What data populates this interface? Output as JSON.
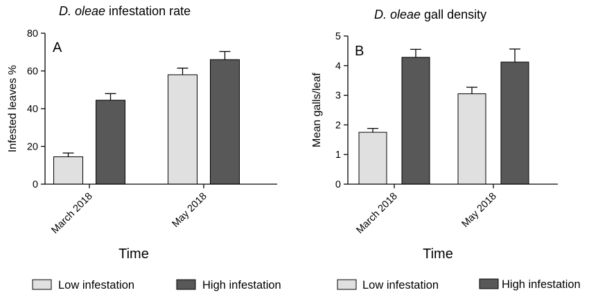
{
  "chart_data": [
    {
      "type": "bar",
      "title_species": "D. oleae",
      "title_rest": "infestation rate",
      "panel_label": "A",
      "categories": [
        "March 2018",
        "May 2018"
      ],
      "xlabel": "Time",
      "ylabel": "Infested leaves %",
      "ylim": [
        0,
        80
      ],
      "yticks": [
        "0",
        "20",
        "40",
        "60",
        "80"
      ],
      "series": [
        {
          "name": "Low infestation",
          "values": [
            14.5,
            58
          ],
          "errors": [
            2,
            3.5
          ],
          "color": "#e0e0e0"
        },
        {
          "name": "High infestation",
          "values": [
            44.5,
            66
          ],
          "errors": [
            3.5,
            4.3
          ],
          "color": "#585858"
        }
      ],
      "legend_position": "bottom"
    },
    {
      "type": "bar",
      "title_species": "D. oleae",
      "title_rest": "gall density",
      "panel_label": "B",
      "categories": [
        "March 2018",
        "May 2018"
      ],
      "xlabel": "Time",
      "ylabel": "Mean galls/leaf",
      "ylim": [
        0,
        5
      ],
      "yticks": [
        "0",
        "1",
        "2",
        "3",
        "4",
        "5"
      ],
      "series": [
        {
          "name": "Low infestation",
          "values": [
            1.75,
            3.05
          ],
          "errors": [
            0.13,
            0.22
          ],
          "color": "#e0e0e0"
        },
        {
          "name": "High infestation",
          "values": [
            4.28,
            4.12
          ],
          "errors": [
            0.27,
            0.44
          ],
          "color": "#585858"
        }
      ],
      "legend_position": "bottom"
    }
  ]
}
